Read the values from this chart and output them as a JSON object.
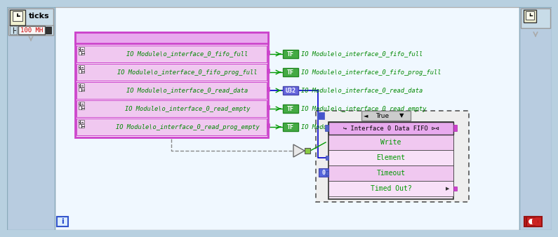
{
  "bg_outer": "#b8d0e0",
  "bg_canvas": "#f0f8ff",
  "left_panel_bg": "#b8cce0",
  "left_panel_border": "#8aaabb",
  "io_box_fill": "#f8e8f8",
  "io_box_border": "#cc44cc",
  "io_title_fill": "#e8aaee",
  "io_row_fill": "#f0c8f0",
  "io_text_color": "#008800",
  "io_icon_color": "#333333",
  "tf_fill": "#44aa44",
  "tf_border": "#228822",
  "tf_text": "#ffffff",
  "u32_fill": "#6666dd",
  "u32_border": "#4444aa",
  "u32_text": "#ffffff",
  "wire_green": "#009900",
  "wire_blue": "#0000cc",
  "wire_gray": "#888888",
  "case_border": "#555555",
  "case_fill": "#f0f0f0",
  "true_bar_fill": "#cccccc",
  "true_bar_border": "#888888",
  "true_dot_color": "#4455cc",
  "fifo_fill": "#f8e8f8",
  "fifo_border": "#333333",
  "fifo_title_fill": "#e8aaee",
  "fifo_row_fill_even": "#f0c8f0",
  "fifo_row_fill_odd": "#f8e0f8",
  "fifo_text_color": "#009900",
  "fifo_title_text": "#000000",
  "tri_fill": "#e8e8e8",
  "tri_border": "#666666",
  "tri_green_sq": "#88cc44",
  "zero_fill": "#5566dd",
  "zero_border": "#4444aa",
  "zero_text": "#ffffff",
  "info_fill": "#ddeeff",
  "info_border": "#3355cc",
  "stop_fill": "#cc2222",
  "stop_border": "#991111",
  "io_rows": [
    "IO Module\\o_interface_0_fifo_full",
    "IO Module\\o_interface_0_fifo_prog_full",
    "IO Module\\o_interface_0_read_data",
    "IO Module\\o_interface_0_read_empty",
    "IO Module\\o_interface_0_read_prog_empty"
  ],
  "right_labels": [
    "IO Module\\o_interface_0_fifo_full",
    "IO Module\\o_interface_0_fifo_prog_full",
    "IO Module\\o_interface_0_read_data",
    "IO Module\\o_interface_0_read_empty",
    "IO Module\\o_interface_0_read_prog_empty"
  ],
  "right_tags": [
    "TF",
    "TF",
    "U32",
    "TF",
    "TF"
  ],
  "fifo_rows": [
    "Write",
    "Element",
    "Timeout",
    "Timed Out?"
  ]
}
